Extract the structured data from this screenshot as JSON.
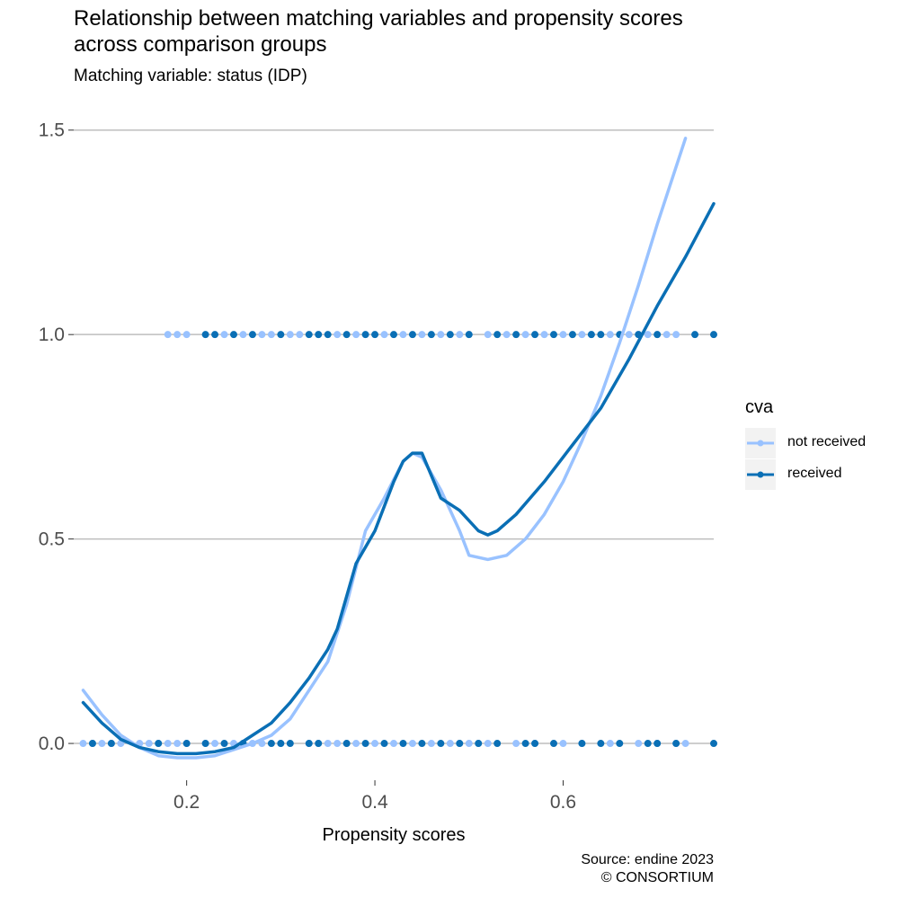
{
  "chart_data": {
    "type": "scatter",
    "title_lines": [
      "Relationship between matching variables and propensity scores",
      "across comparison groups"
    ],
    "subtitle": "Matching variable: status (IDP)",
    "xlabel": "Propensity scores",
    "ylabel": "",
    "xlim": [
      0.08,
      0.76
    ],
    "ylim": [
      -0.09,
      1.55
    ],
    "xticks": [
      0.2,
      0.4,
      0.6
    ],
    "xtick_labels": [
      "0.2",
      "0.4",
      "0.6"
    ],
    "yticks": [
      0.0,
      0.5,
      1.0,
      1.5
    ],
    "ytick_labels": [
      "0.0",
      "0.5",
      "1.0",
      "1.5"
    ],
    "grid": "horizontal major",
    "legend": {
      "title": "cva",
      "position": "right",
      "entries": [
        "not received",
        "received"
      ]
    },
    "caption_lines": [
      "Source: endine 2023",
      "© CONSORTIUM"
    ],
    "series": [
      {
        "name": "not received",
        "color": "#99c2ff",
        "points_y1_x": [
          0.18,
          0.19,
          0.2,
          0.24,
          0.26,
          0.28,
          0.29,
          0.31,
          0.32,
          0.34,
          0.36,
          0.38,
          0.41,
          0.43,
          0.45,
          0.47,
          0.49,
          0.5,
          0.52,
          0.54,
          0.56,
          0.58,
          0.6,
          0.62,
          0.63,
          0.65,
          0.67,
          0.68,
          0.69,
          0.7,
          0.71,
          0.72
        ],
        "points_y0_x": [
          0.09,
          0.1,
          0.11,
          0.12,
          0.13,
          0.15,
          0.16,
          0.17,
          0.18,
          0.19,
          0.2,
          0.22,
          0.23,
          0.25,
          0.27,
          0.28,
          0.3,
          0.33,
          0.34,
          0.35,
          0.36,
          0.37,
          0.38,
          0.4,
          0.42,
          0.44,
          0.46,
          0.48,
          0.49,
          0.5,
          0.51,
          0.52,
          0.55,
          0.57,
          0.6,
          0.62,
          0.65,
          0.68,
          0.7,
          0.72,
          0.73
        ],
        "smooth_x": [
          0.09,
          0.11,
          0.13,
          0.15,
          0.17,
          0.19,
          0.21,
          0.23,
          0.25,
          0.27,
          0.29,
          0.31,
          0.33,
          0.35,
          0.37,
          0.39,
          0.41,
          0.43,
          0.44,
          0.45,
          0.47,
          0.49,
          0.5,
          0.52,
          0.54,
          0.56,
          0.58,
          0.6,
          0.62,
          0.64,
          0.66,
          0.68,
          0.7,
          0.73
        ],
        "smooth_y": [
          0.13,
          0.07,
          0.02,
          -0.01,
          -0.03,
          -0.035,
          -0.035,
          -0.03,
          -0.015,
          0.0,
          0.02,
          0.06,
          0.13,
          0.2,
          0.34,
          0.52,
          0.6,
          0.69,
          0.71,
          0.7,
          0.62,
          0.52,
          0.46,
          0.45,
          0.46,
          0.5,
          0.56,
          0.64,
          0.74,
          0.85,
          0.98,
          1.12,
          1.27,
          1.48
        ]
      },
      {
        "name": "received",
        "color": "#0a6fb5",
        "points_y1_x": [
          0.22,
          0.23,
          0.25,
          0.27,
          0.3,
          0.33,
          0.34,
          0.35,
          0.37,
          0.39,
          0.4,
          0.42,
          0.44,
          0.46,
          0.48,
          0.5,
          0.53,
          0.55,
          0.57,
          0.59,
          0.61,
          0.63,
          0.64,
          0.66,
          0.68,
          0.7,
          0.74,
          0.76
        ],
        "points_y0_x": [
          0.1,
          0.12,
          0.17,
          0.2,
          0.22,
          0.24,
          0.26,
          0.29,
          0.3,
          0.31,
          0.33,
          0.34,
          0.37,
          0.39,
          0.41,
          0.43,
          0.45,
          0.47,
          0.49,
          0.51,
          0.53,
          0.56,
          0.57,
          0.59,
          0.62,
          0.64,
          0.66,
          0.69,
          0.7,
          0.72,
          0.76
        ],
        "smooth_x": [
          0.09,
          0.11,
          0.13,
          0.15,
          0.17,
          0.19,
          0.21,
          0.23,
          0.25,
          0.27,
          0.29,
          0.31,
          0.33,
          0.35,
          0.36,
          0.38,
          0.4,
          0.42,
          0.43,
          0.44,
          0.45,
          0.47,
          0.49,
          0.51,
          0.52,
          0.53,
          0.55,
          0.58,
          0.61,
          0.64,
          0.67,
          0.7,
          0.73,
          0.76
        ],
        "smooth_y": [
          0.1,
          0.05,
          0.01,
          -0.01,
          -0.02,
          -0.025,
          -0.025,
          -0.02,
          -0.01,
          0.02,
          0.05,
          0.1,
          0.16,
          0.23,
          0.28,
          0.44,
          0.52,
          0.64,
          0.69,
          0.71,
          0.71,
          0.6,
          0.57,
          0.52,
          0.51,
          0.52,
          0.56,
          0.64,
          0.73,
          0.82,
          0.94,
          1.07,
          1.19,
          1.32
        ]
      }
    ]
  }
}
